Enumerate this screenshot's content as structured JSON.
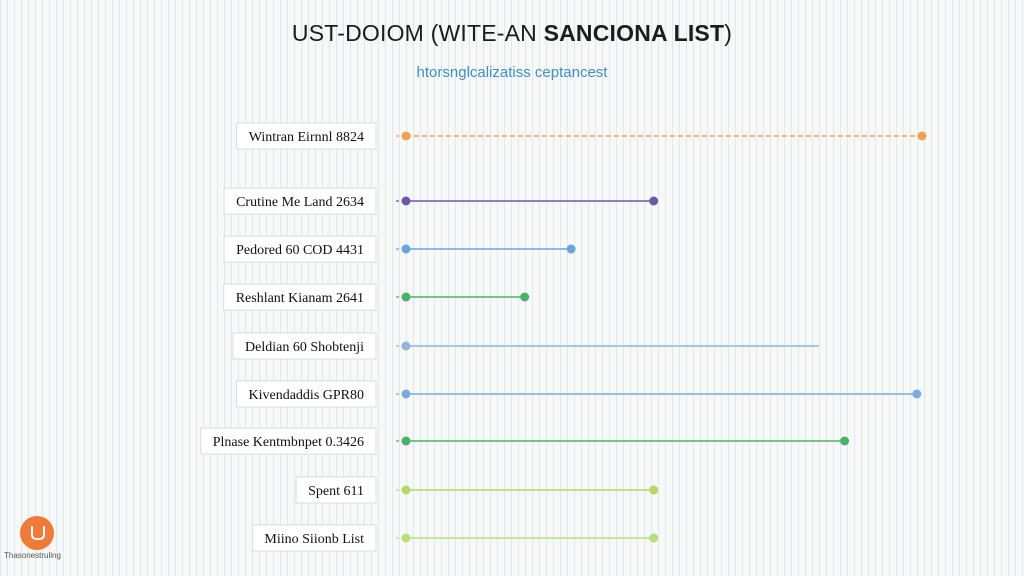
{
  "header": {
    "title_part1": "UST-DOIOM (WITE-AN ",
    "title_part2": "SANCIONA LIST",
    "title_part3": ")",
    "subtitle": "htorsnglcalizatiss ceptancest"
  },
  "brand": {
    "name": "Thasonestruling",
    "logo_icon": "flask-icon",
    "logo_color": "#f07a3a"
  },
  "chart_data": {
    "type": "dumbbell",
    "title": "UST-DOIOM (WITE-AN SANCIONA LIST)",
    "subtitle": "htorsnglcalizatiss ceptancest",
    "xlim": [
      0,
      100
    ],
    "grid": true,
    "rows": [
      {
        "label": "Wintran Eirnnl 8824",
        "start": 0,
        "end": 100,
        "color": "#f0a050"
      },
      {
        "label": "Crutine Me Land 2634",
        "start": 0,
        "end": 48,
        "color": "#6a5aa6"
      },
      {
        "label": "Pedored 60 COD 4431",
        "start": 0,
        "end": 32,
        "color": "#6aa6d8"
      },
      {
        "label": "Reshlant Kianam 2641",
        "start": 0,
        "end": 23,
        "color": "#4cb26a"
      },
      {
        "label": "Deldian 60 Shobtenji",
        "start": 0,
        "end": 80,
        "color": "#8fb6dc",
        "end_marker": false
      },
      {
        "label": "Kivendaddis GPR80",
        "start": 0,
        "end": 99,
        "color": "#7aaae0"
      },
      {
        "label": "Plnase Kentmbnpet 0.3426",
        "start": 0,
        "end": 85,
        "color": "#4cb26a"
      },
      {
        "label": "Spent 611",
        "start": 0,
        "end": 48,
        "color": "#b6d86a"
      },
      {
        "label": "Miino Siionb List",
        "start": 0,
        "end": 48,
        "color": "#b8e07a"
      }
    ]
  }
}
